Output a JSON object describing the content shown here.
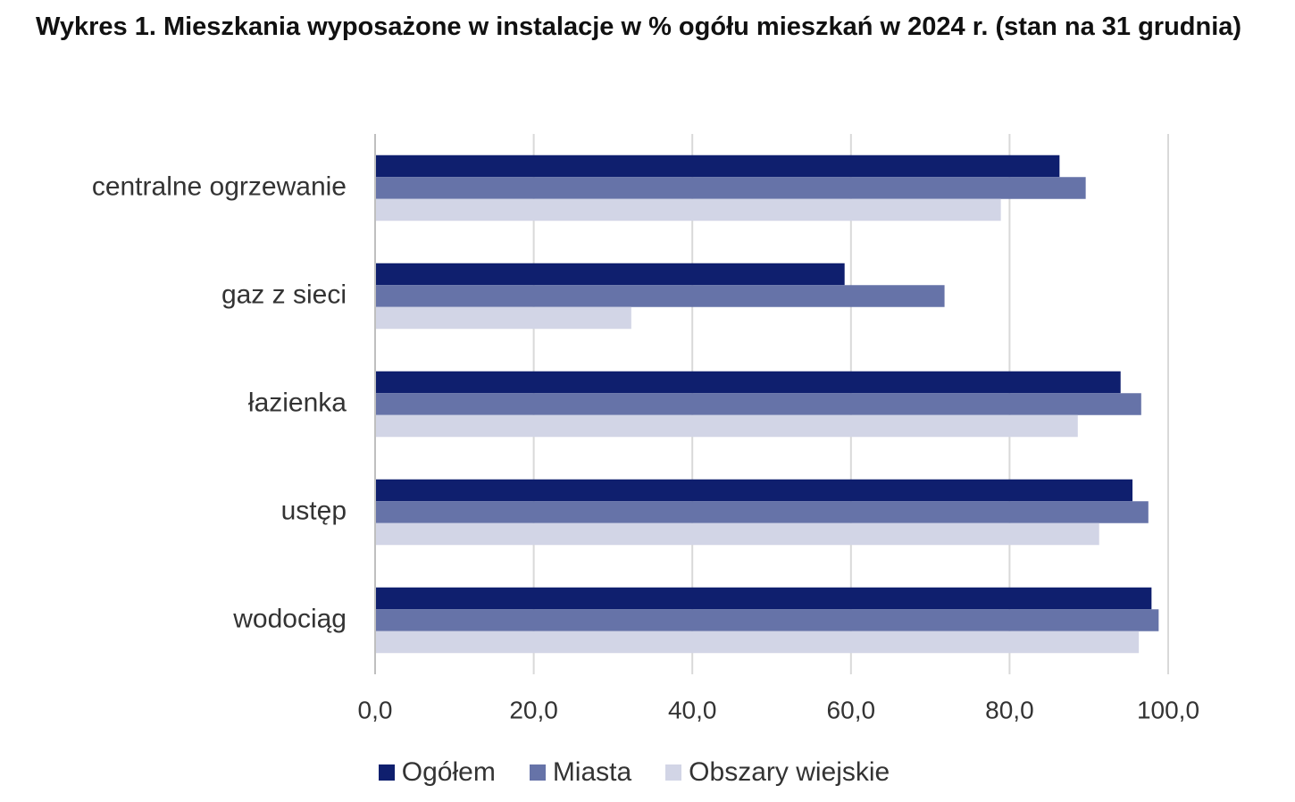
{
  "chart_data": {
    "type": "bar",
    "orientation": "horizontal",
    "title": "Wykres 1. Mieszkania wyposażone w instalacje w % ogółu mieszkań w 2024 r. (stan na 31 grudnia)",
    "categories": [
      "centralne ogrzewanie",
      "gaz z sieci",
      "łazienka",
      "ustęp",
      "wodociąg"
    ],
    "series": [
      {
        "name": "Ogółem",
        "color": "#0f1f6e",
        "values": [
          86.3,
          59.2,
          94.0,
          95.5,
          97.9
        ]
      },
      {
        "name": "Miasta",
        "color": "#6673a8",
        "values": [
          89.6,
          71.8,
          96.6,
          97.5,
          98.8
        ]
      },
      {
        "name": "Obszary wiejskie",
        "color": "#d2d5e6",
        "values": [
          78.9,
          32.3,
          88.6,
          91.3,
          96.3
        ]
      }
    ],
    "xlim": [
      0,
      100
    ],
    "xticks": [
      {
        "value": 0,
        "label": "0,0"
      },
      {
        "value": 20,
        "label": "20,0"
      },
      {
        "value": 40,
        "label": "40,0"
      },
      {
        "value": 60,
        "label": "60,0"
      },
      {
        "value": 80,
        "label": "80,0"
      },
      {
        "value": 100,
        "label": "100,0"
      }
    ],
    "grid": true,
    "legend": "bottom"
  }
}
